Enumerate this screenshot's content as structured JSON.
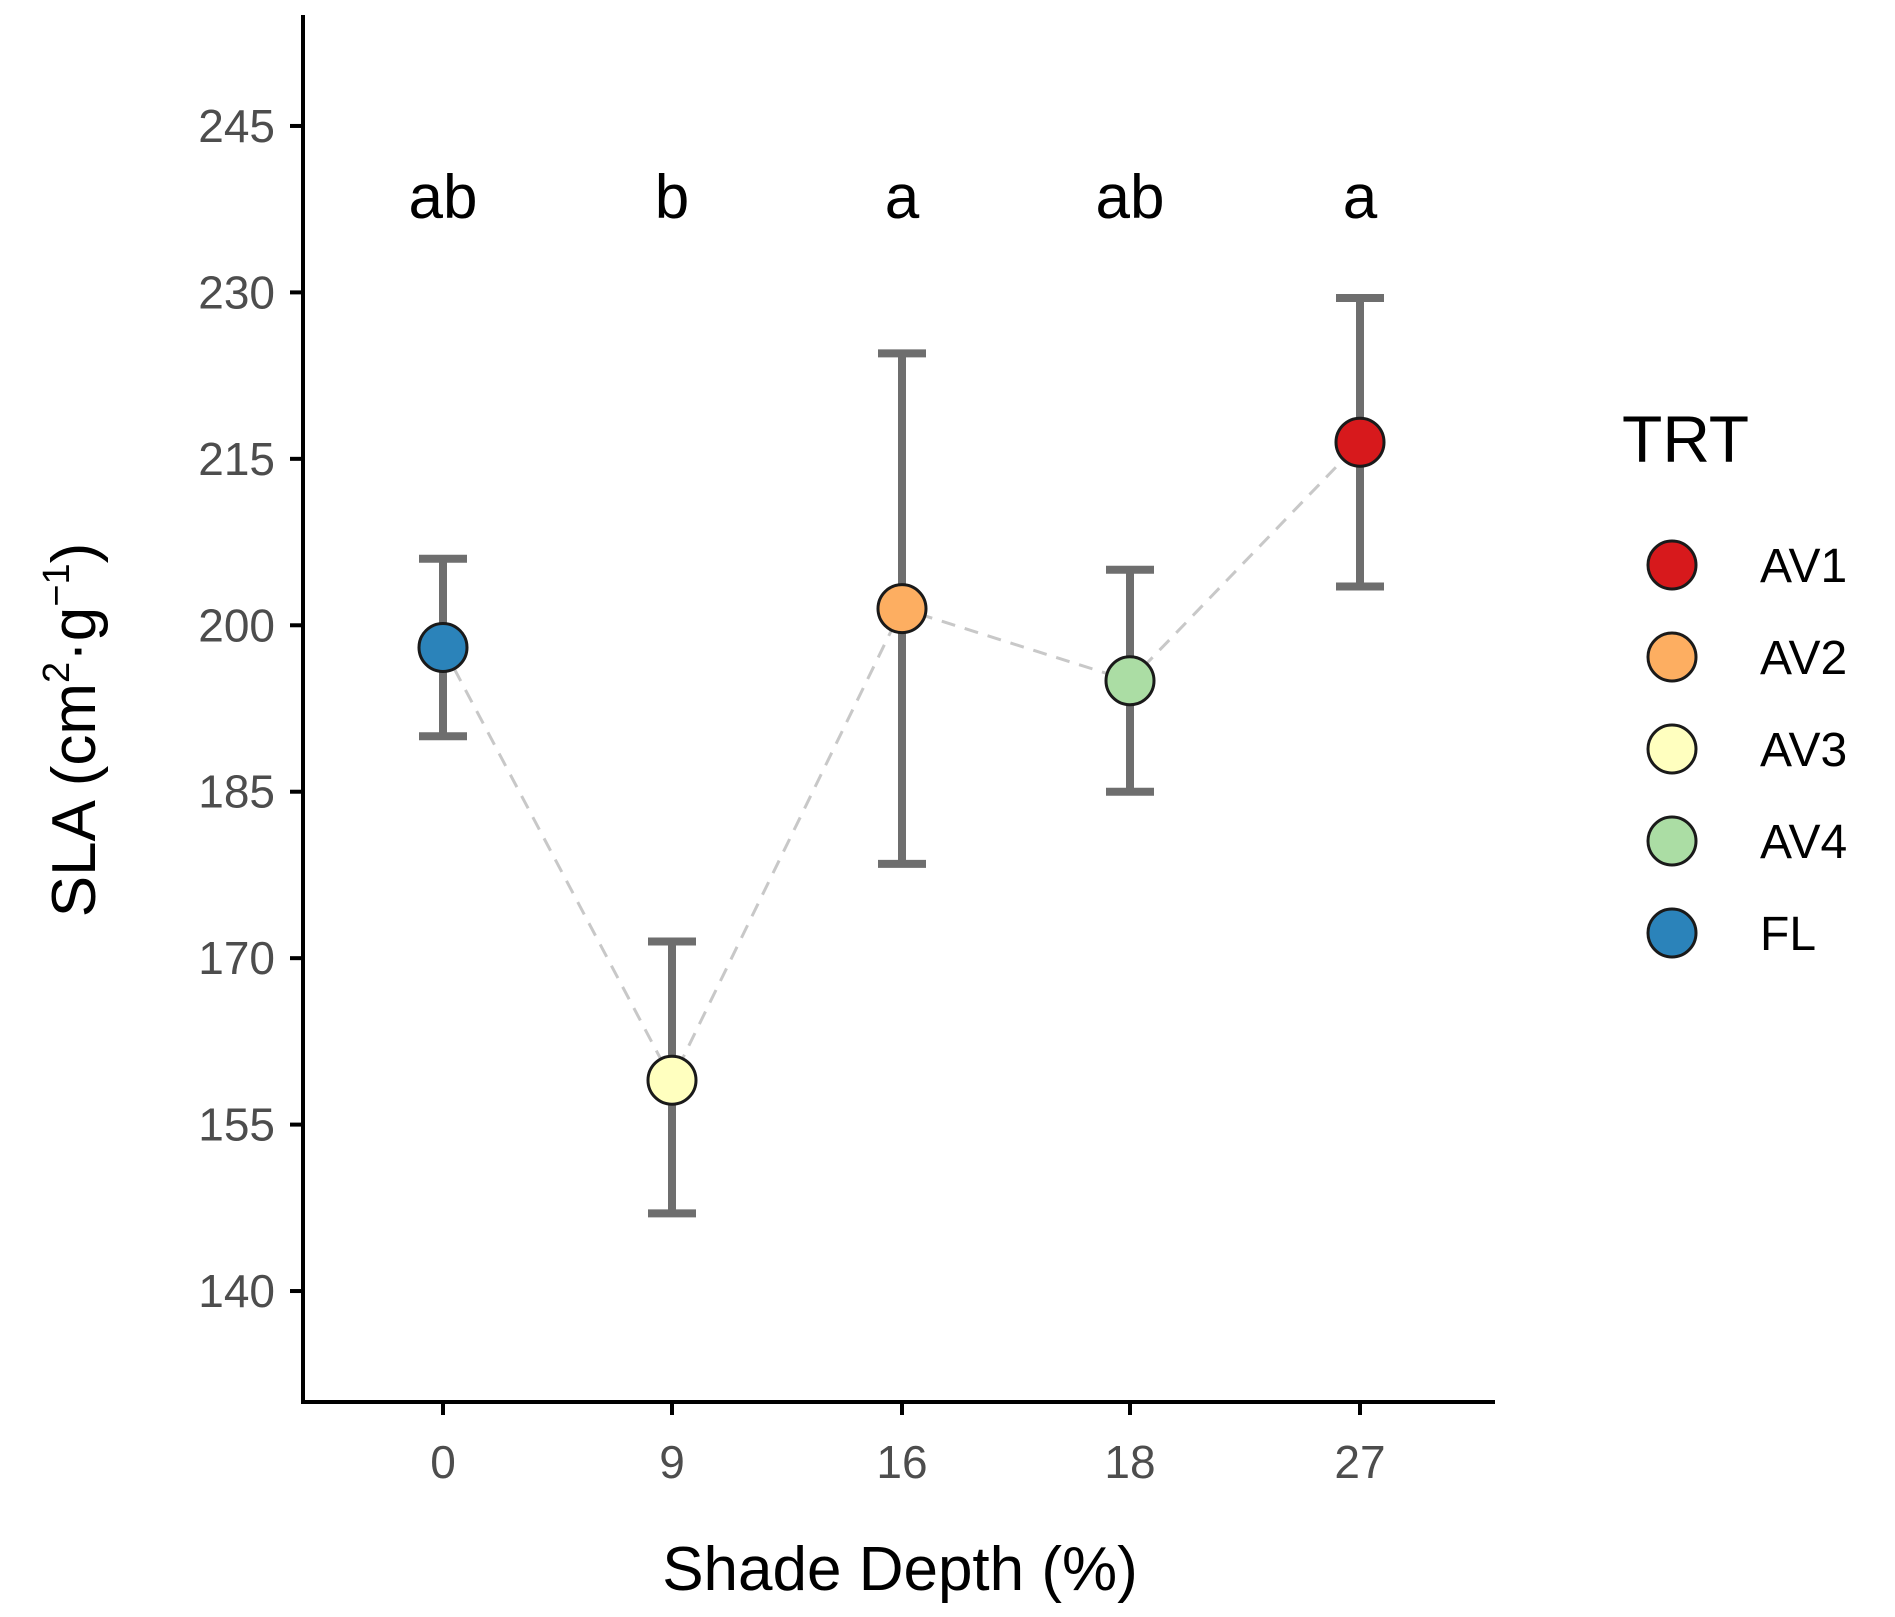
{
  "chart_data": {
    "type": "scatter",
    "xlabel": "Shade Depth (%)",
    "ylabel": {
      "base": "SLA (cm",
      "sup1": "2",
      "mid": "·g",
      "sup2": "−1",
      "end": ")"
    },
    "ylim": [
      130,
      255
    ],
    "yticks": [
      140,
      155,
      170,
      185,
      200,
      215,
      230,
      245
    ],
    "x_categories": [
      "0",
      "9",
      "16",
      "18",
      "27"
    ],
    "points": [
      {
        "x": "0",
        "trt": "FL",
        "y": 198,
        "low": 190,
        "high": 206,
        "sig": "ab"
      },
      {
        "x": "9",
        "trt": "AV3",
        "y": 159,
        "low": 147,
        "high": 171.5,
        "sig": "b"
      },
      {
        "x": "16",
        "trt": "AV2",
        "y": 201.5,
        "low": 178.5,
        "high": 224.5,
        "sig": "a"
      },
      {
        "x": "18",
        "trt": "AV4",
        "y": 195,
        "low": 185,
        "high": 205,
        "sig": "ab"
      },
      {
        "x": "27",
        "trt": "AV1",
        "y": 216.5,
        "low": 203.5,
        "high": 229.5,
        "sig": "a"
      }
    ],
    "line_order": [
      "0",
      "9",
      "16",
      "18",
      "27"
    ],
    "legend": {
      "title": "TRT",
      "entries": [
        {
          "label": "AV1",
          "color": "#d7191c"
        },
        {
          "label": "AV2",
          "color": "#fdae61"
        },
        {
          "label": "AV3",
          "color": "#ffffbf"
        },
        {
          "label": "AV4",
          "color": "#abdda4"
        },
        {
          "label": "FL",
          "color": "#2b83ba"
        }
      ]
    }
  }
}
